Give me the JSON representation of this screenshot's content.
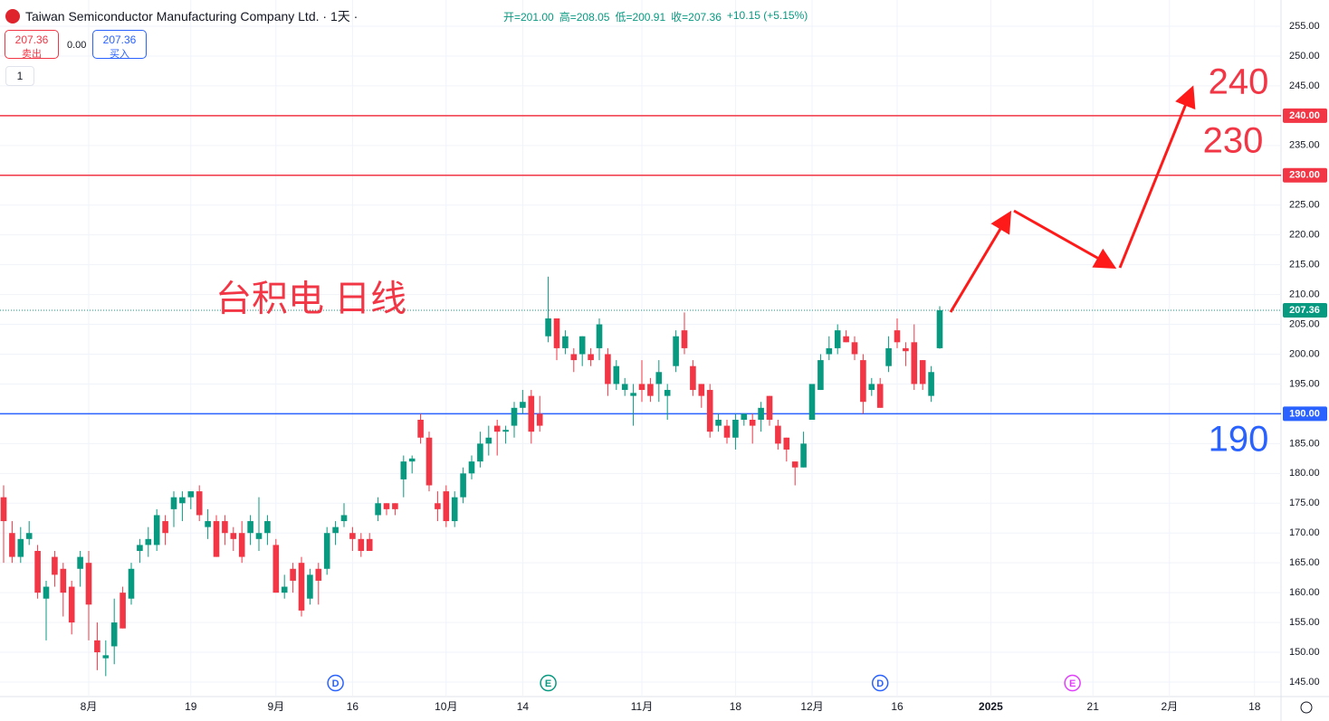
{
  "header": {
    "title": "Taiwan Semiconductor Manufacturing Company Ltd. · 1天 ·",
    "ohlc": [
      "开=201.00",
      "高=208.05",
      "低=200.91",
      "收=207.36",
      "+10.15 (+5.15%)"
    ]
  },
  "trade": {
    "sell_price": "207.36",
    "sell_label": "卖出",
    "spread": "0.00",
    "buy_price": "207.36",
    "buy_label": "买入",
    "quantity": "1"
  },
  "chart_data": {
    "type": "candlestick",
    "annotation": "台积电 日线",
    "up_color": "#089981",
    "down_color": "#f23645",
    "open": [
      176,
      170,
      166,
      169,
      167,
      159,
      166,
      164,
      161,
      164,
      165,
      152,
      149,
      151,
      160,
      159,
      167,
      168,
      168,
      172,
      174,
      175,
      176,
      177,
      171,
      172,
      172,
      170,
      170,
      170,
      169,
      170,
      168,
      160,
      164,
      165,
      159,
      164,
      164,
      170,
      172,
      170,
      169,
      169,
      173,
      175,
      175,
      179,
      182,
      189,
      186,
      175,
      177,
      172,
      176,
      180,
      182,
      185,
      188,
      187,
      188,
      191,
      193,
      190,
      203,
      206,
      201,
      200,
      200,
      200,
      201,
      200,
      195,
      194,
      193,
      195,
      195,
      195,
      193,
      198,
      204,
      198,
      195,
      194,
      188,
      188,
      186,
      189,
      189,
      189,
      193,
      188,
      186,
      182,
      181,
      189,
      194,
      200,
      201,
      203,
      202,
      199,
      194,
      195,
      198,
      204,
      201,
      202,
      199,
      193,
      201
    ],
    "high": [
      178,
      172,
      171,
      172,
      168,
      162,
      167,
      165,
      162,
      167,
      167,
      155,
      152,
      159,
      161,
      165,
      169,
      171,
      174,
      173,
      177,
      177,
      177,
      178,
      174,
      173,
      173,
      171,
      172,
      173,
      176,
      173,
      169,
      163,
      165,
      166,
      164,
      165,
      171,
      172,
      175,
      171,
      170,
      170,
      176,
      175,
      175,
      183,
      183,
      190,
      187,
      177,
      178,
      177,
      181,
      183,
      187,
      188,
      189,
      188,
      192,
      194,
      194,
      193,
      213,
      206,
      204,
      201,
      203,
      201,
      206,
      201,
      199,
      196,
      195,
      199,
      196,
      199,
      195,
      204,
      207,
      199,
      195,
      195,
      190,
      189,
      190,
      190,
      190,
      192,
      193,
      189,
      186,
      182,
      187,
      195,
      200,
      203,
      205,
      204,
      203,
      200,
      196,
      196,
      203,
      206,
      202,
      205,
      199,
      198,
      208.05
    ],
    "low": [
      165,
      165,
      165,
      168,
      159,
      152,
      161,
      156,
      153,
      161,
      152,
      147,
      146,
      148,
      154,
      158,
      165,
      166,
      167,
      168,
      171,
      172,
      174,
      172,
      169,
      166,
      168,
      167,
      165,
      168,
      167,
      168,
      160,
      159,
      160,
      156,
      158,
      158,
      163,
      168,
      171,
      167,
      166,
      167,
      172,
      173,
      173,
      176,
      180,
      185,
      177,
      172,
      171,
      171,
      175,
      179,
      181,
      183,
      183,
      185,
      186,
      190,
      185,
      187,
      202,
      199,
      200,
      197,
      198,
      198,
      199,
      193,
      194,
      193,
      188,
      192,
      192,
      192,
      189,
      197,
      200,
      193,
      191,
      186,
      187,
      185,
      184,
      188,
      185,
      187,
      188,
      184,
      182,
      178,
      181,
      189,
      194,
      199,
      200,
      202,
      199,
      190,
      193,
      191,
      197,
      201,
      198,
      194,
      194,
      192,
      200.91
    ],
    "close": [
      172,
      166,
      169,
      170,
      160,
      161,
      163,
      160,
      155,
      166,
      158,
      150,
      149.5,
      155,
      154,
      164,
      168,
      169,
      173,
      170,
      176,
      176,
      177,
      173,
      172,
      166,
      170,
      169,
      166,
      172,
      170,
      172,
      160,
      161,
      162,
      157,
      163,
      162,
      170,
      171,
      173,
      169,
      167,
      167,
      175,
      174,
      174,
      182,
      182.5,
      186,
      178,
      174,
      172,
      176,
      180,
      182,
      185,
      186,
      187,
      187.3,
      191,
      192,
      187,
      188,
      206,
      201,
      203,
      199,
      203,
      199,
      205,
      195,
      198,
      195,
      193.5,
      194,
      193,
      197,
      194,
      203,
      201,
      194,
      193,
      187,
      189,
      186,
      189,
      190,
      188,
      191,
      189,
      185,
      184,
      181,
      185,
      195,
      199,
      201,
      204,
      202,
      200,
      192,
      195,
      191,
      201,
      202,
      200.5,
      195,
      195,
      197,
      207.36
    ],
    "categories": [
      null,
      null,
      null,
      null,
      null,
      null,
      null,
      null,
      null,
      null,
      null,
      null,
      null,
      null,
      null,
      null,
      null,
      null,
      null,
      null,
      null,
      null,
      null,
      null,
      null,
      null,
      null,
      null,
      null,
      null,
      null,
      null,
      null,
      null,
      null,
      null,
      null,
      null,
      null,
      null,
      null,
      null,
      null,
      null,
      null,
      null,
      null,
      null,
      null,
      null,
      null,
      null,
      null,
      null,
      null,
      null,
      null,
      null,
      null,
      null,
      null,
      null,
      null,
      null,
      null,
      null,
      null,
      null,
      null,
      null,
      null,
      null,
      null,
      null,
      null,
      null,
      null,
      null,
      null,
      null,
      null,
      null,
      null,
      null,
      null,
      null,
      null,
      null,
      null,
      null,
      null,
      null,
      null,
      null,
      null,
      null,
      null,
      null,
      null,
      null,
      null,
      null,
      null,
      null,
      null,
      null,
      null,
      null,
      null,
      null,
      null
    ],
    "xticks": [
      {
        "value": 10,
        "label": "8月"
      },
      {
        "value": 22,
        "label": "19"
      },
      {
        "value": 32,
        "label": "9月"
      },
      {
        "value": 41,
        "label": "16"
      },
      {
        "value": 52,
        "label": "10月"
      },
      {
        "value": 61,
        "label": "14"
      },
      {
        "value": 75,
        "label": "11月"
      },
      {
        "value": 86,
        "label": "18"
      },
      {
        "value": 95,
        "label": "12月"
      },
      {
        "value": 105,
        "label": "16"
      },
      {
        "value": 116,
        "label": "2025"
      },
      {
        "value": 128,
        "label": "21"
      },
      {
        "value": 137,
        "label": "2月"
      },
      {
        "value": 147,
        "label": "18"
      }
    ],
    "ylim": [
      145,
      255
    ],
    "yticks": [
      {
        "value": 145,
        "label": "145.00"
      },
      {
        "value": 150,
        "label": "150.00"
      },
      {
        "value": 155,
        "label": "155.00"
      },
      {
        "value": 160,
        "label": "160.00"
      },
      {
        "value": 165,
        "label": "165.00"
      },
      {
        "value": 170,
        "label": "170.00"
      },
      {
        "value": 175,
        "label": "175.00"
      },
      {
        "value": 180,
        "label": "180.00"
      },
      {
        "value": 185,
        "label": "185.00"
      },
      {
        "value": 190,
        "label": "190.00"
      },
      {
        "value": 195,
        "label": "195.00"
      },
      {
        "value": 200,
        "label": "200.00"
      },
      {
        "value": 205,
        "label": "205.00"
      },
      {
        "value": 210,
        "label": "210.00"
      },
      {
        "value": 215,
        "label": "215.00"
      },
      {
        "value": 220,
        "label": "220.00"
      },
      {
        "value": 225,
        "label": "225.00"
      },
      {
        "value": 230,
        "label": "230.00"
      },
      {
        "value": 235,
        "label": "235.00"
      },
      {
        "value": 240,
        "label": "240.00"
      },
      {
        "value": 245,
        "label": "245.00"
      },
      {
        "value": 250,
        "label": "250.00"
      },
      {
        "value": 255,
        "label": "255.00"
      }
    ],
    "grid": true,
    "levels": [
      {
        "value": 240,
        "label": "240.00",
        "color": "#f23645"
      },
      {
        "value": 230,
        "label": "230.00",
        "color": "#f23645"
      },
      {
        "value": 190,
        "label": "190.00",
        "color": "#2962ff"
      }
    ],
    "last_price": 207.36,
    "events": [
      {
        "index": 39,
        "label": "D",
        "color": "#2962ff"
      },
      {
        "index": 64,
        "label": "E",
        "color": "#089981"
      },
      {
        "index": 103,
        "label": "D",
        "color": "#2962ff"
      },
      {
        "index": 125.6,
        "label": "E",
        "color": "#e040fb"
      }
    ]
  }
}
